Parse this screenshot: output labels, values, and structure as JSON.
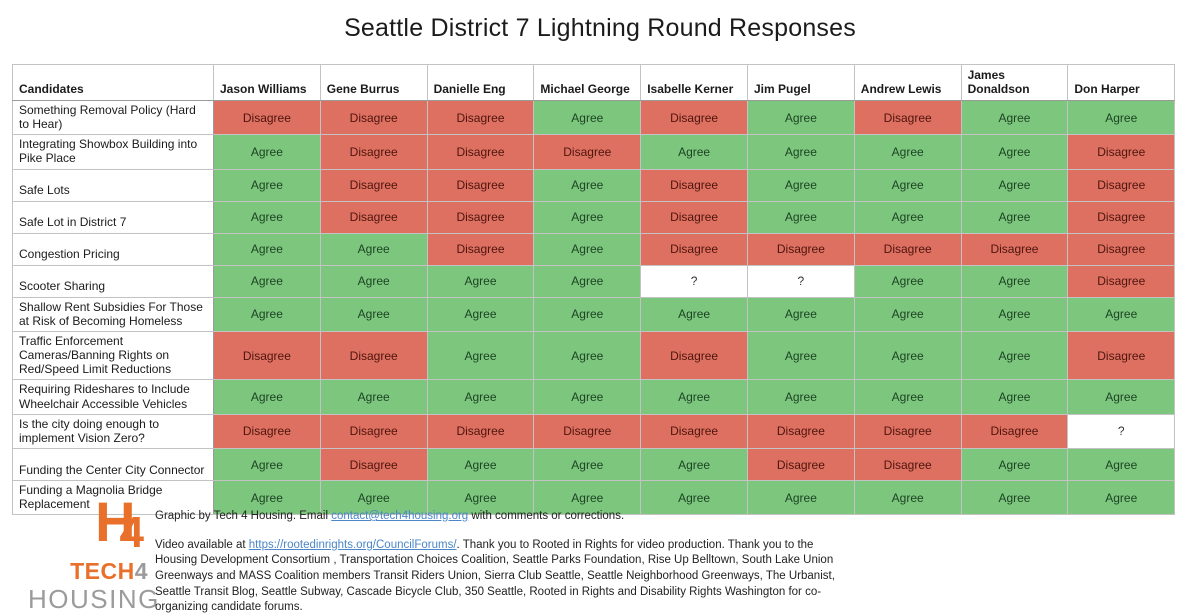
{
  "chart_data": {
    "type": "table",
    "title": "Seattle District 7 Lightning Round Responses",
    "corner_header": "Candidates",
    "columns": [
      "Jason Williams",
      "Gene Burrus",
      "Danielle Eng",
      "Michael George",
      "Isabelle Kerner",
      "Jim Pugel",
      "Andrew Lewis",
      "James Donaldson",
      "Don Harper"
    ],
    "rows": [
      {
        "label": "Something Removal Policy (Hard to Hear)",
        "values": [
          "Disagree",
          "Disagree",
          "Disagree",
          "Agree",
          "Disagree",
          "Agree",
          "Disagree",
          "Agree",
          "Agree"
        ]
      },
      {
        "label": "Integrating Showbox Building into Pike Place",
        "values": [
          "Agree",
          "Disagree",
          "Disagree",
          "Disagree",
          "Agree",
          "Agree",
          "Agree",
          "Agree",
          "Disagree"
        ]
      },
      {
        "label": "Safe Lots",
        "values": [
          "Agree",
          "Disagree",
          "Disagree",
          "Agree",
          "Disagree",
          "Agree",
          "Agree",
          "Agree",
          "Disagree"
        ]
      },
      {
        "label": "Safe Lot in District 7",
        "values": [
          "Agree",
          "Disagree",
          "Disagree",
          "Agree",
          "Disagree",
          "Agree",
          "Agree",
          "Agree",
          "Disagree"
        ]
      },
      {
        "label": "Congestion Pricing",
        "values": [
          "Agree",
          "Agree",
          "Disagree",
          "Agree",
          "Disagree",
          "Disagree",
          "Disagree",
          "Disagree",
          "Disagree"
        ]
      },
      {
        "label": "Scooter Sharing",
        "values": [
          "Agree",
          "Agree",
          "Agree",
          "Agree",
          "?",
          "?",
          "Agree",
          "Agree",
          "Disagree"
        ]
      },
      {
        "label": "Shallow Rent Subsidies For Those at Risk of Becoming Homeless",
        "values": [
          "Agree",
          "Agree",
          "Agree",
          "Agree",
          "Agree",
          "Agree",
          "Agree",
          "Agree",
          "Agree"
        ]
      },
      {
        "label": "Traffic Enforcement Cameras/Banning Rights on Red/Speed Limit Reductions",
        "values": [
          "Disagree",
          "Disagree",
          "Agree",
          "Agree",
          "Disagree",
          "Agree",
          "Agree",
          "Agree",
          "Disagree"
        ]
      },
      {
        "label": "Requiring Rideshares to Include Wheelchair Accessible Vehicles",
        "values": [
          "Agree",
          "Agree",
          "Agree",
          "Agree",
          "Agree",
          "Agree",
          "Agree",
          "Agree",
          "Agree"
        ]
      },
      {
        "label": "Is the city doing enough to implement Vision Zero?",
        "values": [
          "Disagree",
          "Disagree",
          "Disagree",
          "Disagree",
          "Disagree",
          "Disagree",
          "Disagree",
          "Disagree",
          "?"
        ]
      },
      {
        "label": "Funding the Center City Connector",
        "values": [
          "Agree",
          "Disagree",
          "Agree",
          "Agree",
          "Agree",
          "Disagree",
          "Disagree",
          "Agree",
          "Agree"
        ]
      },
      {
        "label": "Funding a Magnolia Bridge Replacement",
        "values": [
          "Agree",
          "Agree",
          "Agree",
          "Agree",
          "Agree",
          "Agree",
          "Agree",
          "Agree",
          "Agree"
        ]
      }
    ],
    "cell_colors": {
      "Agree": {
        "bg": "#7DC67E",
        "text": "#1D4423"
      },
      "Disagree": {
        "bg": "#DD7061",
        "text": "#4E150D"
      },
      "?": {
        "bg": "#FFFFFF",
        "text": "#333333"
      }
    },
    "legend_position": "none",
    "grid": true
  },
  "logo": {
    "mark_letter": "H",
    "mark_digit": "4",
    "word_top_orange": "TECH",
    "word_top_gray": "4",
    "word_bottom": "HOUSING",
    "orange": "#E8702A",
    "gray": "#9B9B9B"
  },
  "footer": {
    "credit": {
      "pre": "Graphic by Tech 4 Housing. Email ",
      "link": "contact@tech4housing.org",
      "post": " with comments or corrections."
    },
    "video": {
      "pre": "Video available at ",
      "link": "https://rootedinrights.org/CouncilForums/",
      "post": ". Thank you to Rooted in Rights for video production. Thank you to the Housing Development Consortium , Transportation Choices Coalition, Seattle Parks Foundation, Rise Up Belltown, South Lake Union Greenways and MASS Coalition members Transit Riders Union, Sierra Club Seattle, Seattle Neighborhood Greenways, The Urbanist, Seattle Transit Blog, Seattle Subway, Cascade Bicycle Club, 350 Seattle, Rooted in Rights and Disability Rights Washington for co-organizing candidate forums."
    },
    "link_color": "#4A86C8"
  }
}
